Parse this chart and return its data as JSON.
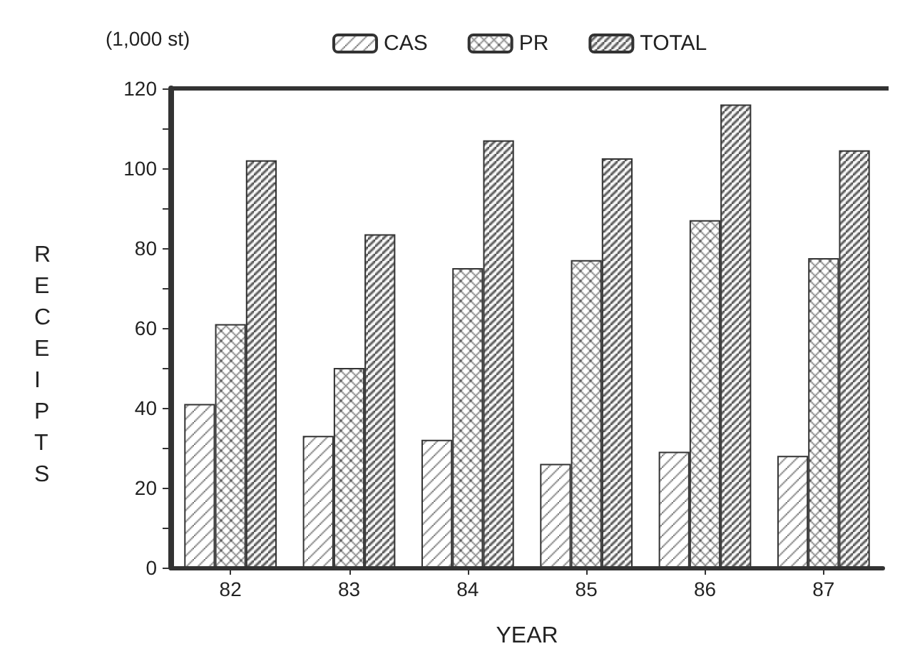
{
  "chart_data": {
    "type": "bar",
    "xlabel": "YEAR",
    "ylabel": "RECEIPTS",
    "annotations": [
      "(1,000 st)"
    ],
    "categories": [
      "82",
      "83",
      "84",
      "85",
      "86",
      "87"
    ],
    "series": [
      {
        "name": "CAS",
        "color": "#333333",
        "values": [
          41,
          33,
          32,
          26,
          29,
          28
        ]
      },
      {
        "name": "PR",
        "color": "#333333",
        "values": [
          61,
          50,
          75,
          77,
          87,
          77.5
        ]
      },
      {
        "name": "TOTAL",
        "color": "#333333",
        "values": [
          102,
          83.5,
          107,
          102.5,
          116,
          104.5
        ]
      }
    ],
    "ylim": [
      0,
      120
    ],
    "yticks": [
      0,
      {
        "value": 10,
        "label": null
      },
      20,
      {
        "value": 30,
        "label": null
      },
      40,
      {
        "value": 50,
        "label": null
      },
      60,
      {
        "value": 70,
        "label": null
      },
      80,
      {
        "value": 90,
        "label": null
      },
      100,
      {
        "value": 110,
        "label": null
      },
      120
    ],
    "grid": false,
    "legend": "top"
  }
}
